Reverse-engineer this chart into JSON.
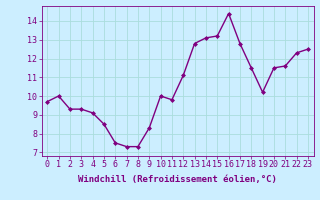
{
  "x": [
    0,
    1,
    2,
    3,
    4,
    5,
    6,
    7,
    8,
    9,
    10,
    11,
    12,
    13,
    14,
    15,
    16,
    17,
    18,
    19,
    20,
    21,
    22,
    23
  ],
  "y": [
    9.7,
    10.0,
    9.3,
    9.3,
    9.1,
    8.5,
    7.5,
    7.3,
    7.3,
    8.3,
    10.0,
    9.8,
    11.1,
    12.8,
    13.1,
    13.2,
    14.4,
    12.8,
    11.5,
    10.2,
    11.5,
    11.6,
    12.3,
    12.5
  ],
  "line_color": "#800080",
  "marker": "D",
  "marker_size": 2,
  "bg_color": "#cceeff",
  "grid_color": "#aadddd",
  "xlabel": "Windchill (Refroidissement éolien,°C)",
  "ylim": [
    6.8,
    14.8
  ],
  "xlim": [
    -0.5,
    23.5
  ],
  "xticks": [
    0,
    1,
    2,
    3,
    4,
    5,
    6,
    7,
    8,
    9,
    10,
    11,
    12,
    13,
    14,
    15,
    16,
    17,
    18,
    19,
    20,
    21,
    22,
    23
  ],
  "yticks": [
    7,
    8,
    9,
    10,
    11,
    12,
    13,
    14
  ],
  "xlabel_fontsize": 6.5,
  "tick_fontsize": 6,
  "line_width": 1.0
}
